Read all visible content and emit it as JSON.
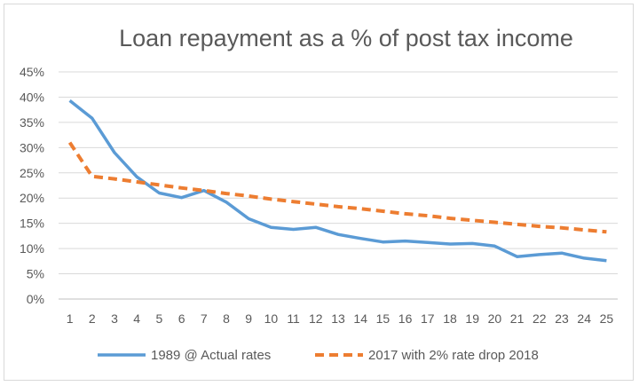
{
  "chart_data": {
    "type": "line",
    "title": "Loan repayment as a % of post tax income",
    "xlabel": "",
    "ylabel": "",
    "x": [
      1,
      2,
      3,
      4,
      5,
      6,
      7,
      8,
      9,
      10,
      11,
      12,
      13,
      14,
      15,
      16,
      17,
      18,
      19,
      20,
      21,
      22,
      23,
      24,
      25
    ],
    "ylim": [
      0,
      45
    ],
    "y_ticks": [
      "0%",
      "5%",
      "10%",
      "15%",
      "20%",
      "25%",
      "30%",
      "35%",
      "40%",
      "45%"
    ],
    "grid": true,
    "legend_position": "bottom",
    "series": [
      {
        "name": "1989 @ Actual rates",
        "color": "#5b9bd5",
        "style": "solid",
        "values": [
          39.3,
          35.8,
          29.0,
          24.2,
          21.0,
          20.1,
          21.5,
          19.2,
          15.9,
          14.2,
          13.8,
          14.2,
          12.8,
          12.0,
          11.3,
          11.5,
          11.2,
          10.9,
          11.0,
          10.5,
          8.4,
          8.8,
          9.1,
          8.1,
          7.6
        ]
      },
      {
        "name": "2017 with 2% rate drop 2018",
        "color": "#ed7d31",
        "style": "dashed",
        "values": [
          31.0,
          24.3,
          23.8,
          23.2,
          22.6,
          22.0,
          21.5,
          20.9,
          20.4,
          19.8,
          19.3,
          18.8,
          18.3,
          17.9,
          17.4,
          16.9,
          16.5,
          16.0,
          15.6,
          15.2,
          14.8,
          14.4,
          14.1,
          13.7,
          13.3
        ]
      }
    ]
  }
}
